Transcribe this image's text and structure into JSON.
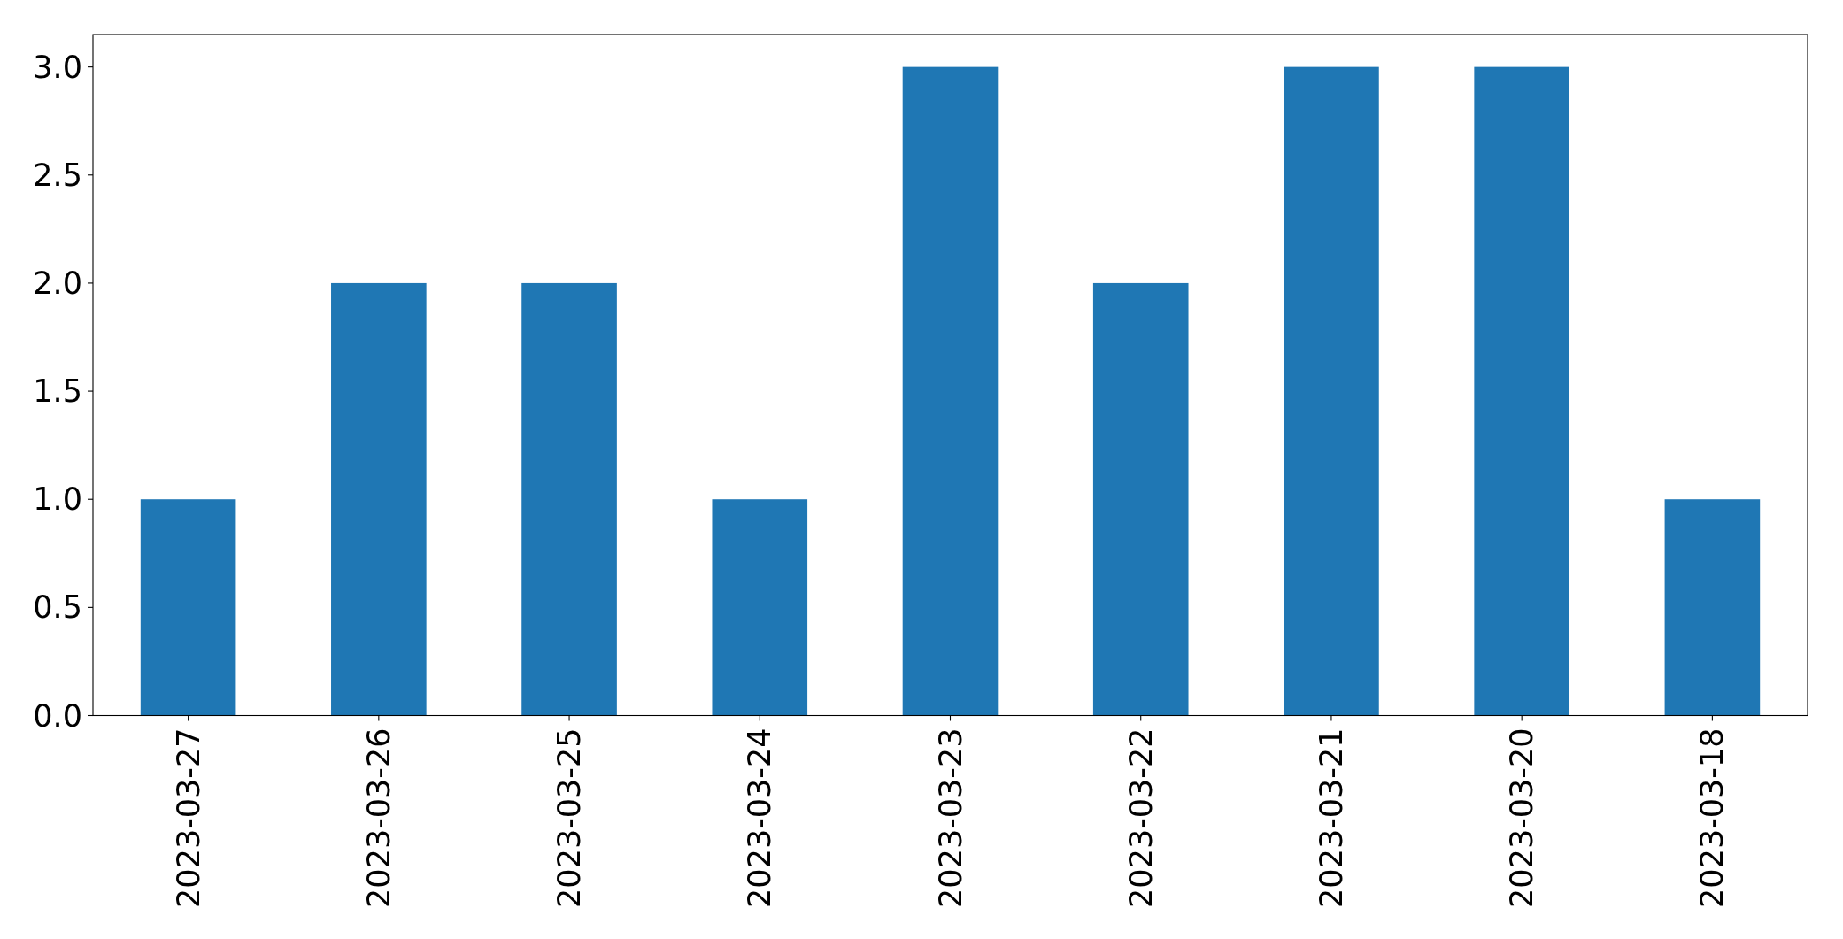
{
  "chart_data": {
    "type": "bar",
    "categories": [
      "2023-03-27",
      "2023-03-26",
      "2023-03-25",
      "2023-03-24",
      "2023-03-23",
      "2023-03-22",
      "2023-03-21",
      "2023-03-20",
      "2023-03-18"
    ],
    "values": [
      1,
      2,
      2,
      1,
      3,
      2,
      3,
      3,
      1
    ],
    "color": "#1f77b4",
    "ylim": [
      0,
      3.15
    ],
    "yticks": [
      {
        "value": 0,
        "label": "0.0"
      },
      {
        "value": 0.5,
        "label": "0.5"
      },
      {
        "value": 1,
        "label": "1.0"
      },
      {
        "value": 1.5,
        "label": "1.5"
      },
      {
        "value": 2,
        "label": "2.0"
      },
      {
        "value": 2.5,
        "label": "2.5"
      },
      {
        "value": 3,
        "label": "3.0"
      }
    ]
  }
}
